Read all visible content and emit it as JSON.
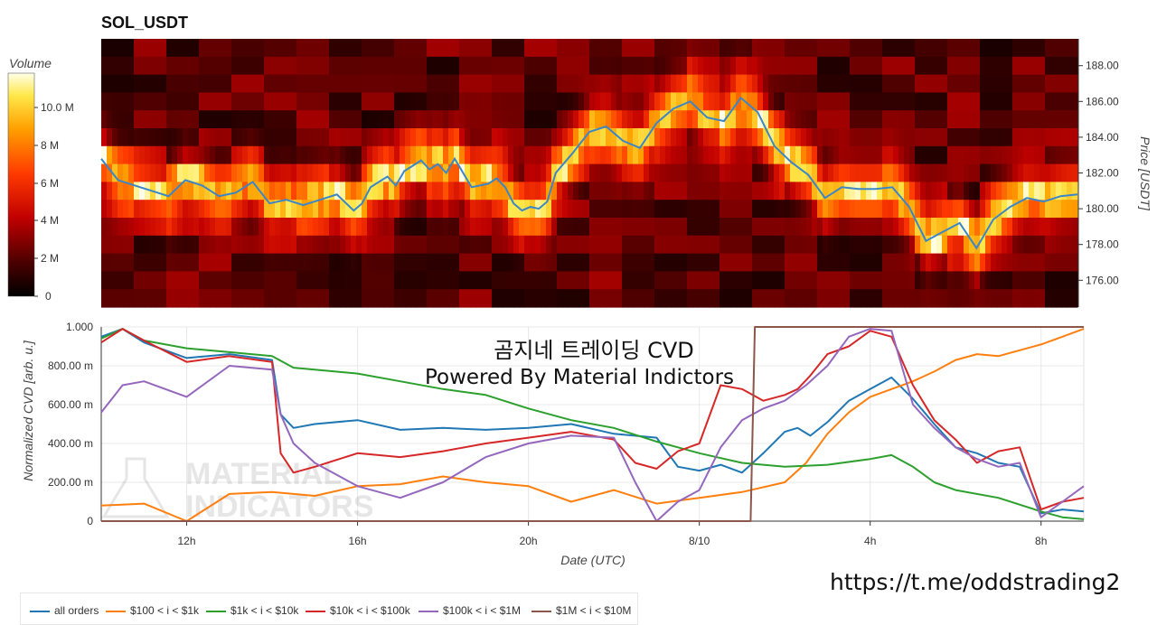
{
  "heatmap": {
    "title": "SOL_USDT",
    "colorbar_title": "Volume",
    "colorbar_ticks": [
      "10.0 M",
      "8 M",
      "6 M",
      "4 M",
      "2 M",
      "0"
    ],
    "price_label": "Price [USDT]",
    "price_ticks": [
      "188.00",
      "186.00",
      "184.00",
      "182.00",
      "180.00",
      "178.00",
      "176.00"
    ],
    "price_values": [
      188,
      186,
      184,
      182,
      180,
      178,
      176
    ]
  },
  "cvd": {
    "overlay_line1": "곰지네 트레이딩 CVD",
    "overlay_line2": "Powered By Material Indictors",
    "ylabel": "Normalized CVD [arb. u.]",
    "xlabel": "Date (UTC)",
    "y_ticks": [
      "1.000",
      "800.00 m",
      "600.00 m",
      "400.00 m",
      "200.00 m",
      "0"
    ],
    "x_ticks": [
      "12h",
      "16h",
      "20h",
      "8/10",
      "4h",
      "8h"
    ],
    "watermark_line1": "MATERIAL",
    "watermark_line2": "INDICATORS"
  },
  "chart_data": [
    {
      "type": "heatmap",
      "title": "SOL_USDT",
      "colorbar": "Volume",
      "ylabel": "Price [USDT]",
      "ylim": [
        174.5,
        189.5
      ],
      "price_series": {
        "x_hours": [
          0,
          2,
          4,
          6,
          8,
          10,
          12,
          14,
          16,
          18,
          20,
          22,
          24,
          26,
          28,
          30,
          31,
          32,
          33,
          34,
          35,
          36,
          37,
          38,
          39,
          40,
          41,
          42,
          44,
          46,
          47,
          48,
          49,
          50,
          51,
          52,
          53,
          54,
          56,
          58,
          60,
          62,
          64,
          66,
          68,
          70,
          72,
          74,
          76,
          78,
          80,
          82,
          84,
          86,
          88,
          90,
          92,
          94,
          96,
          98,
          100,
          102,
          104,
          106,
          108,
          110,
          112,
          114,
          116
        ],
        "values": [
          182.8,
          181.6,
          181.3,
          181.0,
          180.7,
          181.6,
          181.3,
          180.7,
          180.9,
          181.5,
          180.3,
          180.5,
          180.2,
          180.5,
          180.8,
          179.9,
          180.3,
          181.2,
          181.5,
          181.8,
          181.3,
          182.1,
          182.4,
          182.7,
          182.2,
          182.5,
          182.0,
          182.8,
          181.2,
          181.4,
          181.7,
          181.2,
          180.3,
          179.9,
          180.1,
          180.0,
          180.4,
          182.0,
          183.1,
          184.3,
          184.6,
          183.8,
          183.4,
          184.8,
          185.6,
          186.0,
          185.1,
          184.9,
          186.2,
          185.4,
          183.5,
          182.6,
          181.9,
          180.6,
          181.2,
          181.1,
          181.1,
          181.2,
          180.1,
          178.2,
          178.7,
          179.2,
          177.8,
          179.4,
          180.1,
          180.6,
          180.4,
          180.7,
          180.8
        ]
      }
    },
    {
      "type": "line",
      "xlabel": "Date (UTC)",
      "ylabel": "Normalized CVD [arb. u.]",
      "x_unit": "hours since 10:00 UTC",
      "ylim": [
        0,
        1
      ],
      "x_tick_labels": [
        "12h",
        "16h",
        "20h",
        "8/10",
        "4h",
        "8h"
      ],
      "x_tick_values": [
        2,
        6,
        10,
        14,
        18,
        22
      ],
      "series": [
        {
          "name": "all orders",
          "color": "#1f77b4",
          "x": [
            0,
            0.5,
            1,
            2,
            3,
            4,
            4.2,
            4.5,
            5,
            6,
            7,
            8,
            9,
            10,
            11,
            12,
            13,
            13.5,
            14,
            14.5,
            15,
            15.5,
            16,
            16.3,
            16.6,
            17,
            17.5,
            18,
            18.5,
            19,
            19.5,
            20,
            20.5,
            21,
            21.5,
            22,
            22.5,
            23
          ],
          "y": [
            0.95,
            0.99,
            0.92,
            0.84,
            0.86,
            0.83,
            0.55,
            0.48,
            0.5,
            0.52,
            0.47,
            0.48,
            0.47,
            0.48,
            0.5,
            0.45,
            0.43,
            0.28,
            0.26,
            0.29,
            0.25,
            0.35,
            0.46,
            0.48,
            0.44,
            0.51,
            0.62,
            0.68,
            0.74,
            0.63,
            0.5,
            0.38,
            0.35,
            0.3,
            0.28,
            0.04,
            0.06,
            0.05
          ]
        },
        {
          "name": "$100 < i < $1k",
          "color": "#ff7f0e",
          "x": [
            0,
            1,
            2,
            3,
            4,
            5,
            6,
            7,
            8,
            9,
            10,
            11,
            12,
            13,
            14,
            15,
            16,
            16.5,
            17,
            17.5,
            18,
            18.5,
            19,
            19.5,
            20,
            20.5,
            21,
            21.5,
            22,
            22.5,
            23
          ],
          "y": [
            0.08,
            0.09,
            0.0,
            0.14,
            0.15,
            0.13,
            0.18,
            0.19,
            0.23,
            0.2,
            0.18,
            0.1,
            0.16,
            0.09,
            0.12,
            0.15,
            0.2,
            0.3,
            0.45,
            0.56,
            0.64,
            0.68,
            0.72,
            0.77,
            0.83,
            0.86,
            0.85,
            0.88,
            0.91,
            0.95,
            0.99
          ]
        },
        {
          "name": "$1k < i < $10k",
          "color": "#2ca02c",
          "x": [
            0,
            0.5,
            1,
            2,
            3,
            4,
            4.5,
            5,
            6,
            7,
            8,
            9,
            10,
            11,
            12,
            13,
            14,
            15,
            16,
            17,
            18,
            18.5,
            19,
            19.5,
            20,
            21,
            22,
            22.5,
            23
          ],
          "y": [
            0.94,
            0.99,
            0.93,
            0.89,
            0.87,
            0.85,
            0.79,
            0.78,
            0.76,
            0.72,
            0.68,
            0.65,
            0.58,
            0.52,
            0.48,
            0.41,
            0.35,
            0.3,
            0.28,
            0.29,
            0.32,
            0.34,
            0.28,
            0.2,
            0.16,
            0.12,
            0.05,
            0.02,
            0.01
          ]
        },
        {
          "name": "$10k < i < $100k",
          "color": "#d62728",
          "x": [
            0,
            0.5,
            1,
            2,
            3,
            4,
            4.2,
            4.5,
            5,
            6,
            7,
            8,
            9,
            10,
            11,
            12,
            12.5,
            13,
            13.5,
            14,
            14.5,
            15,
            15.5,
            16,
            16.3,
            16.6,
            17,
            17.5,
            18,
            18.5,
            19,
            19.5,
            20,
            20.5,
            21,
            21.5,
            22,
            22.5,
            23
          ],
          "y": [
            0.92,
            0.99,
            0.93,
            0.82,
            0.85,
            0.82,
            0.35,
            0.25,
            0.28,
            0.35,
            0.33,
            0.36,
            0.4,
            0.43,
            0.46,
            0.42,
            0.3,
            0.27,
            0.36,
            0.4,
            0.7,
            0.68,
            0.62,
            0.65,
            0.68,
            0.75,
            0.86,
            0.9,
            0.98,
            0.95,
            0.7,
            0.52,
            0.42,
            0.3,
            0.36,
            0.38,
            0.06,
            0.1,
            0.12
          ]
        },
        {
          "name": "$100k < i < $1M",
          "color": "#9467bd",
          "x": [
            0,
            0.5,
            1,
            2,
            3,
            4,
            4.2,
            4.5,
            5,
            6,
            7,
            8,
            9,
            10,
            11,
            12,
            12.5,
            13,
            13.5,
            14,
            14.5,
            15,
            15.5,
            16,
            16.5,
            17,
            17.5,
            18,
            18.5,
            19,
            19.5,
            20,
            20.5,
            21,
            21.5,
            22,
            22.5,
            23
          ],
          "y": [
            0.56,
            0.7,
            0.72,
            0.64,
            0.8,
            0.78,
            0.55,
            0.4,
            0.3,
            0.18,
            0.12,
            0.2,
            0.33,
            0.4,
            0.44,
            0.43,
            0.2,
            0.0,
            0.1,
            0.16,
            0.38,
            0.52,
            0.58,
            0.62,
            0.7,
            0.8,
            0.95,
            0.99,
            0.98,
            0.6,
            0.48,
            0.38,
            0.32,
            0.28,
            0.3,
            0.02,
            0.1,
            0.18
          ]
        },
        {
          "name": "$1M < i < $10M",
          "color": "#8c564b",
          "x": [
            0,
            15.2,
            15.3,
            23
          ],
          "y": [
            0,
            0,
            1,
            1
          ]
        }
      ]
    }
  ],
  "legend": [
    {
      "label": "all orders",
      "color": "#1f77b4"
    },
    {
      "label": "$100 < i < $1k",
      "color": "#ff7f0e"
    },
    {
      "label": "$1k < i < $10k",
      "color": "#2ca02c"
    },
    {
      "label": "$10k < i < $100k",
      "color": "#d62728"
    },
    {
      "label": "$100k < i < $1M",
      "color": "#9467bd"
    },
    {
      "label": "$1M < i < $10M",
      "color": "#8c564b"
    }
  ],
  "footer_link": "https://t.me/oddstrading2"
}
